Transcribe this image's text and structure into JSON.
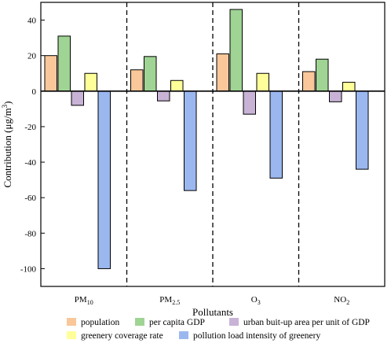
{
  "chart_data": {
    "type": "bar",
    "categories": [
      "PM10",
      "PM2.5",
      "O3",
      "NO2"
    ],
    "category_labels": [
      {
        "base": "PM",
        "sub": "10"
      },
      {
        "base": "PM",
        "sub": "2.5"
      },
      {
        "base": "O",
        "sub": "3"
      },
      {
        "base": "NO",
        "sub": "2"
      }
    ],
    "series": [
      {
        "name": "population",
        "color": "#f9c799",
        "values": [
          20,
          12,
          21,
          11
        ]
      },
      {
        "name": "per capita GDP",
        "color": "#9fd494",
        "values": [
          31,
          19.5,
          46,
          18
        ]
      },
      {
        "name": "urban buit-up area per unit of GDP",
        "color": "#c8b3d6",
        "values": [
          -8,
          -5.5,
          -13,
          -6
        ]
      },
      {
        "name": "greenery coverage rate",
        "color": "#ffff99",
        "values": [
          10,
          6,
          10,
          5
        ]
      },
      {
        "name": "pollution load intensity of greenery",
        "color": "#9bb7ef",
        "values": [
          -100,
          -56,
          -49,
          -44
        ]
      }
    ],
    "xlabel": "Pollutants",
    "ylabel": {
      "base": "Contribution (μg/m",
      "sup": "3",
      "tail": ")"
    },
    "ylim": [
      -110,
      50
    ],
    "yticks": [
      "40",
      "20",
      "0",
      "-20",
      "-40",
      "-60",
      "-80",
      "-100"
    ],
    "ytick_values": [
      40,
      20,
      0,
      -20,
      -40,
      -60,
      -80,
      -100
    ],
    "grid": false,
    "group_separators": "dashed",
    "legend_placement": "bottom"
  }
}
